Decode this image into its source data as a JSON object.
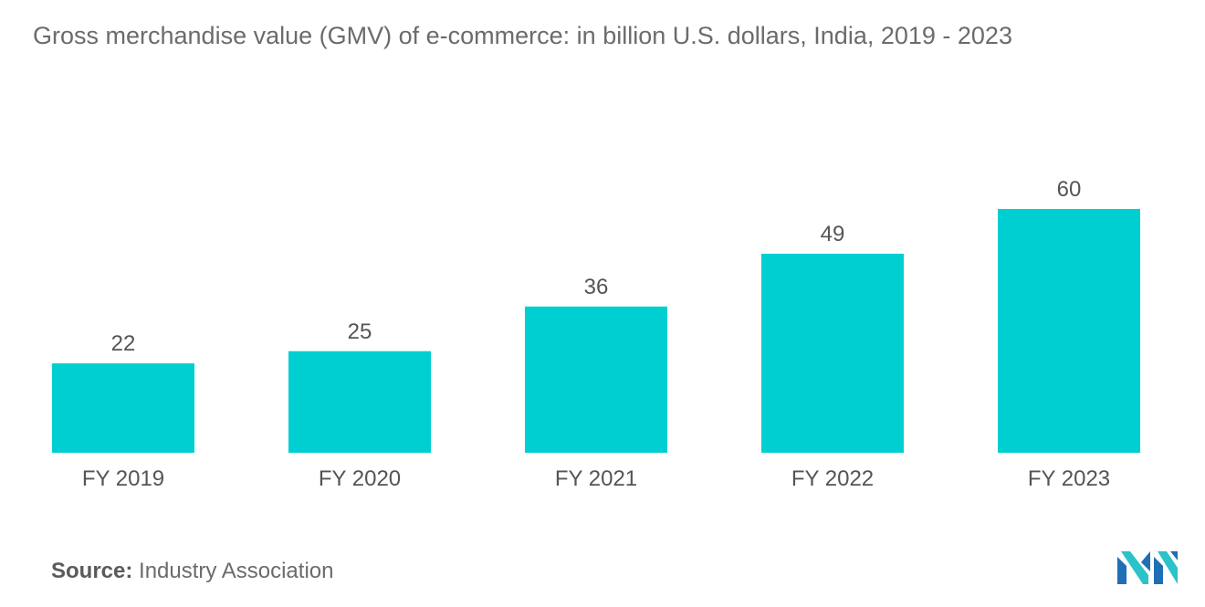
{
  "chart_data": {
    "type": "bar",
    "title": "Gross merchandise value (GMV) of e-commerce: in billion U.S. dollars, India, 2019 - 2023",
    "categories": [
      "FY 2019",
      "FY 2020",
      "FY 2021",
      "FY 2022",
      "FY 2023"
    ],
    "values": [
      22,
      25,
      36,
      49,
      60
    ],
    "xlabel": "",
    "ylabel": "",
    "ylim": [
      0,
      60
    ],
    "grid": false,
    "legend": "none",
    "bar_color": "#00cfd1"
  },
  "source": {
    "label": "Source:",
    "text": "Industry Association"
  },
  "logo": {
    "icon": "mordor-intelligence-logo-icon",
    "colors": [
      "#1f6fb5",
      "#2bc3c9"
    ]
  }
}
